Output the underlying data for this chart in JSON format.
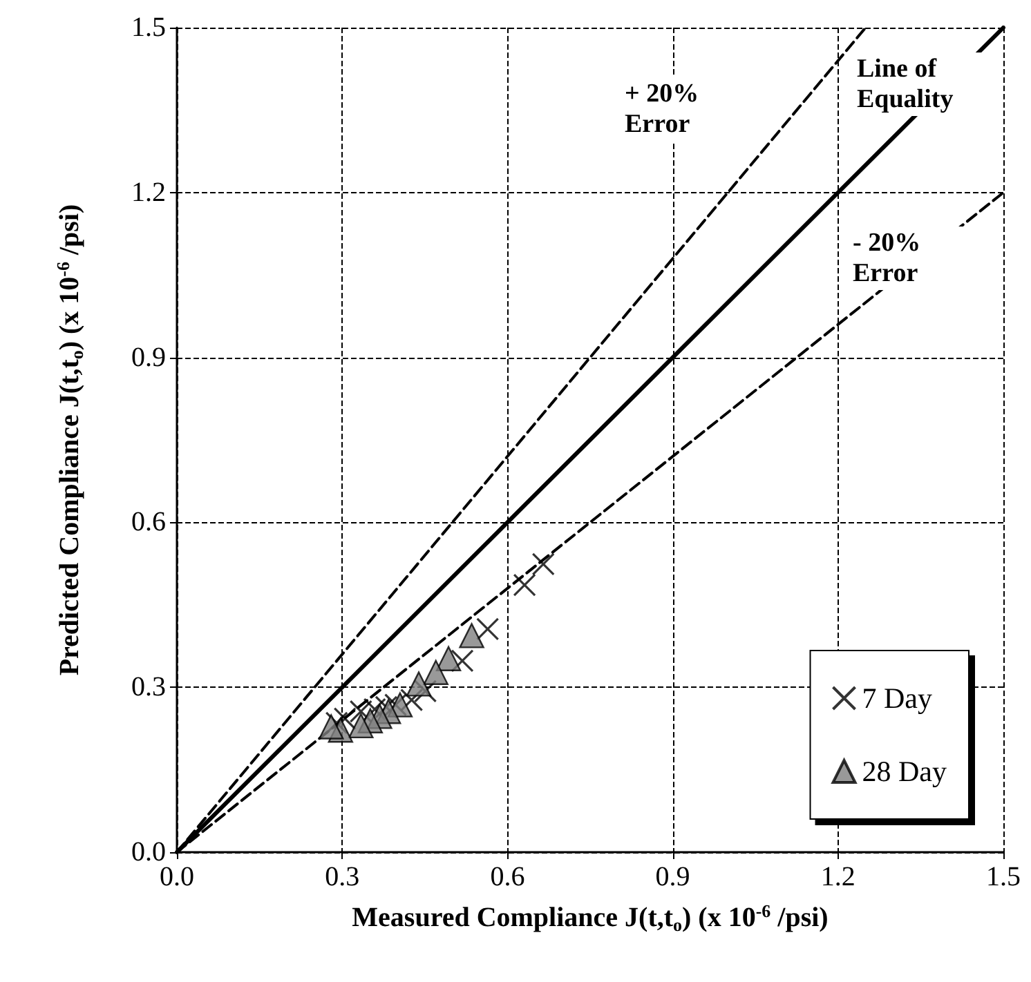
{
  "chart_data": {
    "type": "scatter",
    "xlabel": "Measured Compliance J(t,t$_{o}$) (x 10$^{-6}$ /psi)",
    "ylabel": "Predicted Compliance J(t,t$_{o}$) (x 10$^{-6}$ /psi)",
    "xlim": [
      0,
      1.5
    ],
    "ylim": [
      0,
      1.5
    ],
    "xticks": [
      {
        "value": 0,
        "label": "0.0"
      },
      0.3,
      0.6,
      0.9,
      1.2,
      1.5
    ],
    "yticks": [
      {
        "value": 0,
        "label": "0.0"
      },
      0.3,
      0.6,
      0.9,
      1.2,
      1.5
    ],
    "grid": true,
    "legend": "bottom right",
    "series": [
      {
        "name": "7 Day",
        "marker": "cross",
        "color": "#000000",
        "x": [
          0.665,
          0.631,
          0.564,
          0.518,
          0.451,
          0.426,
          0.397,
          0.38,
          0.359,
          0.334,
          0.305,
          0.29
        ],
        "values": [
          0.524,
          0.486,
          0.406,
          0.348,
          0.293,
          0.277,
          0.268,
          0.264,
          0.26,
          0.256,
          0.243,
          0.235
        ]
      },
      {
        "name": "28 Day",
        "marker": "triangle",
        "color": "#808080",
        "x": [
          0.535,
          0.493,
          0.47,
          0.439,
          0.405,
          0.384,
          0.368,
          0.351,
          0.334,
          0.297,
          0.28
        ],
        "values": [
          0.394,
          0.352,
          0.327,
          0.306,
          0.268,
          0.256,
          0.247,
          0.239,
          0.23,
          0.222,
          0.228
        ]
      },
      {
        "type": "line",
        "marker": "none",
        "line_style": "solid",
        "color": "#000000",
        "x": [
          0,
          1.5
        ],
        "values": [
          0,
          1.5
        ]
      },
      {
        "type": "line",
        "marker": "none",
        "line_style": "dashed",
        "color": "#000000",
        "x": [
          0,
          1.25
        ],
        "values": [
          0,
          1.5
        ]
      },
      {
        "type": "line",
        "marker": "none",
        "line_style": "dashed",
        "color": "#000000",
        "x": [
          0,
          1.5
        ],
        "values": [
          0,
          1.2
        ]
      }
    ],
    "annotations": [
      "Line of\nEquality",
      "+ 20%\nError",
      "- 20%\nError"
    ]
  }
}
